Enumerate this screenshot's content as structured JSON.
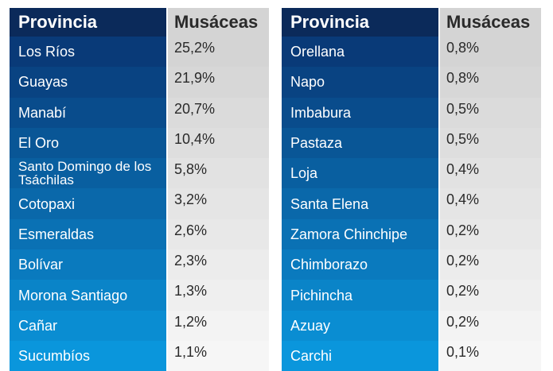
{
  "header": {
    "provincia": "Provincia",
    "musaceas": "Musáceas"
  },
  "left_table": [
    {
      "provincia": "Los Ríos",
      "musaceas": "25,2%"
    },
    {
      "provincia": "Guayas",
      "musaceas": "21,9%"
    },
    {
      "provincia": "Manabí",
      "musaceas": "20,7%"
    },
    {
      "provincia": "El Oro",
      "musaceas": "10,4%"
    },
    {
      "provincia": "Santo Domingo de los Tsáchilas",
      "musaceas": "5,8%"
    },
    {
      "provincia": "Cotopaxi",
      "musaceas": "3,2%"
    },
    {
      "provincia": "Esmeraldas",
      "musaceas": "2,6%"
    },
    {
      "provincia": "Bolívar",
      "musaceas": "2,3%"
    },
    {
      "provincia": "Morona Santiago",
      "musaceas": "1,3%"
    },
    {
      "provincia": "Cañar",
      "musaceas": "1,2%"
    },
    {
      "provincia": "Sucumbíos",
      "musaceas": "1,1%"
    }
  ],
  "right_table": [
    {
      "provincia": "Orellana",
      "musaceas": "0,8%"
    },
    {
      "provincia": "Napo",
      "musaceas": "0,8%"
    },
    {
      "provincia": "Imbabura",
      "musaceas": "0,5%"
    },
    {
      "provincia": "Pastaza",
      "musaceas": "0,5%"
    },
    {
      "provincia": "Loja",
      "musaceas": "0,4%"
    },
    {
      "provincia": "Santa Elena",
      "musaceas": "0,4%"
    },
    {
      "provincia": "Zamora Chinchipe",
      "musaceas": "0,2%"
    },
    {
      "provincia": "Chimborazo",
      "musaceas": "0,2%"
    },
    {
      "provincia": "Pichincha",
      "musaceas": "0,2%"
    },
    {
      "provincia": "Azuay",
      "musaceas": "0,2%"
    },
    {
      "provincia": "Carchi",
      "musaceas": "0,1%"
    }
  ],
  "colors": {
    "header_dark": "#0b2a5a",
    "header_gray": "#d4d4d4",
    "row_start": "#093a78",
    "row_end": "#0a96dc",
    "val_start": "#d4d4d4",
    "val_end": "#f6f6f6"
  }
}
